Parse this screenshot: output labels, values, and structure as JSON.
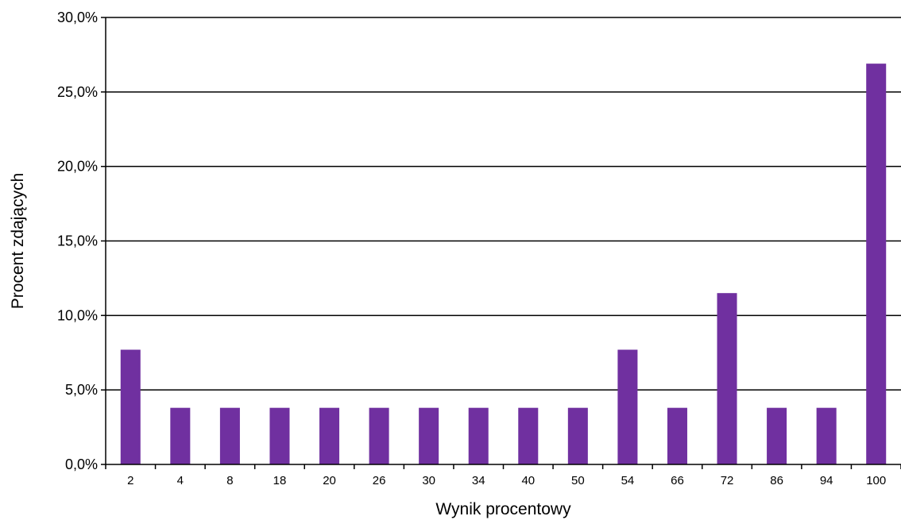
{
  "chart_data": {
    "type": "bar",
    "title": "",
    "xlabel": "Wynik procentowy",
    "ylabel": "Procent zdających",
    "categories": [
      "2",
      "4",
      "8",
      "18",
      "20",
      "26",
      "30",
      "34",
      "40",
      "50",
      "54",
      "66",
      "72",
      "86",
      "94",
      "100"
    ],
    "values": [
      7.7,
      3.8,
      3.8,
      3.8,
      3.8,
      3.8,
      3.8,
      3.8,
      3.8,
      3.8,
      7.7,
      3.8,
      11.5,
      3.8,
      3.8,
      26.9
    ],
    "ylim": [
      0,
      30
    ],
    "yticks": [
      0,
      5,
      10,
      15,
      20,
      25,
      30
    ],
    "ytick_labels": [
      "0,0%",
      "5,0%",
      "10,0%",
      "15,0%",
      "20,0%",
      "25,0%",
      "30,0%"
    ],
    "grid": "horizontal",
    "legend": "none",
    "bar_color": "#7030a0"
  }
}
